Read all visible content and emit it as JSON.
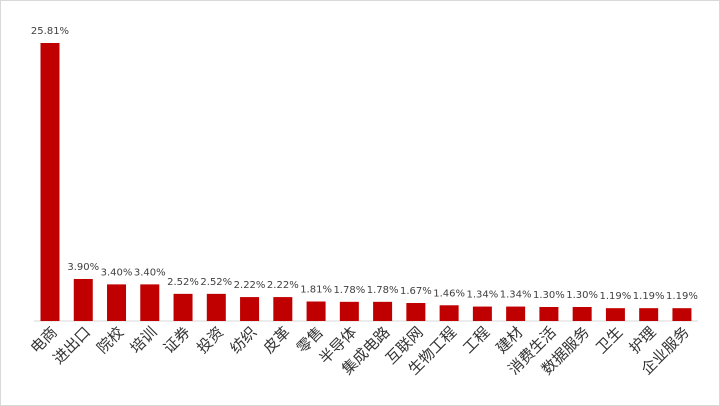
{
  "chart_data": {
    "type": "bar",
    "categories": [
      "电商",
      "进出口",
      "院校",
      "培训",
      "证券",
      "投资",
      "纺织",
      "皮革",
      "零售",
      "半导体",
      "集成电路",
      "互联网",
      "生物工程",
      "工程",
      "建材",
      "消费生活",
      "数据服务",
      "卫生",
      "护理",
      "企业服务"
    ],
    "values": [
      25.81,
      3.9,
      3.4,
      3.4,
      2.52,
      2.52,
      2.22,
      2.22,
      1.81,
      1.78,
      1.78,
      1.67,
      1.46,
      1.34,
      1.34,
      1.3,
      1.3,
      1.19,
      1.19,
      1.19
    ],
    "value_labels": [
      "25.81%",
      "3.90%",
      "3.40%",
      "3.40%",
      "2.52%",
      "2.52%",
      "2.22%",
      "2.22%",
      "1.81%",
      "1.78%",
      "1.78%",
      "1.67%",
      "1.46%",
      "1.34%",
      "1.34%",
      "1.30%",
      "1.30%",
      "1.19%",
      "1.19%",
      "1.19%"
    ],
    "color": "#c00000"
  }
}
